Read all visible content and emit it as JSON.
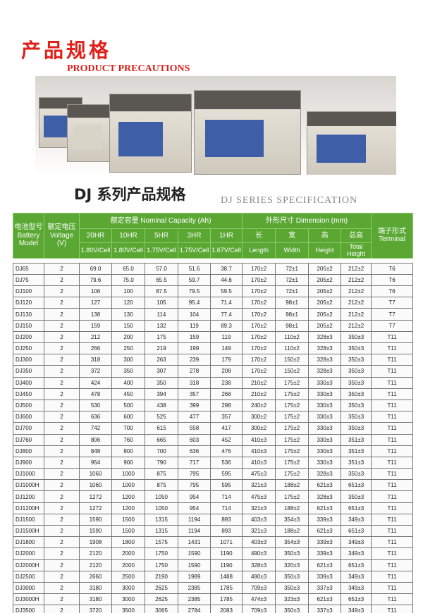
{
  "title_cn": "产品规格",
  "title_en": "PRODUCT PRECAUTIONS",
  "section_cn": "DJ 系列产品规格",
  "section_en": "DJ SERIES SPECIFICATION",
  "colors": {
    "header_green": "#5aa833",
    "title_red": "#e0201a"
  },
  "table": {
    "model_cn": "电池型号",
    "model_en1": "Battery",
    "model_en2": "Model",
    "voltage_cn": "额定电压",
    "voltage_en": "Voltage",
    "voltage_unit": "(V)",
    "capacity_header": "额定容量 Nominal Capacity (Ah)",
    "dimension_header": "外形尺寸 Dimension (mm)",
    "terminal_cn": "端子形式",
    "terminal_en": "Terminal",
    "rates": [
      "20HR",
      "10HR",
      "5HR",
      "3HR",
      "1HR"
    ],
    "cutoffs": [
      "1.80V/Cell",
      "1.80V/Cell",
      "1.75V/Cell",
      "1.75V/Cell",
      "1.67V/Cell"
    ],
    "dims_cn": [
      "长",
      "宽",
      "高",
      "总高"
    ],
    "dims_en": [
      "Length",
      "Width",
      "Height",
      "Total Height"
    ],
    "rows": [
      [
        "DJ65",
        "2",
        "69.0",
        "65.0",
        "57.0",
        "51.6",
        "38.7",
        "170±2",
        "72±1",
        "205±2",
        "212±2",
        "T6"
      ],
      [
        "DJ75",
        "2",
        "79.6",
        "75.0",
        "65.5",
        "59.7",
        "44.6",
        "170±2",
        "72±1",
        "205±2",
        "212±2",
        "T6"
      ],
      [
        "DJ100",
        "2",
        "106",
        "100",
        "87.5",
        "79.5",
        "59.5",
        "170±2",
        "72±1",
        "205±2",
        "212±2",
        "T6"
      ],
      [
        "DJ120",
        "2",
        "127",
        "120",
        "105",
        "95.4",
        "71.4",
        "170±2",
        "98±1",
        "205±2",
        "212±2",
        "T7"
      ],
      [
        "DJ130",
        "2",
        "138",
        "130",
        "114",
        "104",
        "77.4",
        "170±2",
        "98±1",
        "205±2",
        "212±2",
        "T7"
      ],
      [
        "DJ150",
        "2",
        "159",
        "150",
        "132",
        "119",
        "89.3",
        "170±2",
        "98±1",
        "205±2",
        "212±2",
        "T7"
      ],
      [
        "DJ200",
        "2",
        "212",
        "200",
        "175",
        "159",
        "119",
        "170±2",
        "110±2",
        "328±3",
        "350±3",
        "T11"
      ],
      [
        "DJ250",
        "2",
        "266",
        "250",
        "219",
        "199",
        "149",
        "170±2",
        "110±2",
        "328±3",
        "350±3",
        "T11"
      ],
      [
        "DJ300",
        "2",
        "318",
        "300",
        "263",
        "239",
        "179",
        "170±2",
        "150±2",
        "328±3",
        "350±3",
        "T11"
      ],
      [
        "DJ350",
        "2",
        "372",
        "350",
        "307",
        "278",
        "208",
        "170±2",
        "150±2",
        "328±3",
        "350±3",
        "T11"
      ],
      [
        "DJ400",
        "2",
        "424",
        "400",
        "350",
        "318",
        "238",
        "210±2",
        "175±2",
        "330±3",
        "350±3",
        "T11"
      ],
      [
        "DJ450",
        "2",
        "478",
        "450",
        "394",
        "357",
        "268",
        "210±2",
        "175±2",
        "330±3",
        "350±3",
        "T11"
      ],
      [
        "DJ500",
        "2",
        "530",
        "500",
        "438",
        "399",
        "298",
        "240±2",
        "175±2",
        "330±3",
        "350±3",
        "T11"
      ],
      [
        "DJ600",
        "2",
        "636",
        "600",
        "525",
        "477",
        "357",
        "300±2",
        "175±2",
        "330±3",
        "350±3",
        "T11"
      ],
      [
        "DJ700",
        "2",
        "742",
        "700",
        "615",
        "558",
        "417",
        "300±2",
        "175±2",
        "330±3",
        "350±3",
        "T11"
      ],
      [
        "DJ760",
        "2",
        "806",
        "760",
        "665",
        "603",
        "452",
        "410±3",
        "175±2",
        "330±3",
        "351±3",
        "T11"
      ],
      [
        "DJ800",
        "2",
        "848",
        "800",
        "700",
        "636",
        "476",
        "410±3",
        "175±2",
        "330±3",
        "351±3",
        "T11"
      ],
      [
        "DJ900",
        "2",
        "954",
        "900",
        "790",
        "717",
        "536",
        "410±3",
        "175±2",
        "330±3",
        "351±3",
        "T11"
      ],
      [
        "DJ1000",
        "2",
        "1060",
        "1000",
        "875",
        "795",
        "595",
        "475±3",
        "175±2",
        "328±3",
        "350±3",
        "T11"
      ],
      [
        "DJ1000H",
        "2",
        "1060",
        "1000",
        "875",
        "795",
        "595",
        "321±3",
        "188±2",
        "621±3",
        "651±3",
        "T11"
      ],
      [
        "DJ1200",
        "2",
        "1272",
        "1200",
        "1050",
        "954",
        "714",
        "475±3",
        "175±2",
        "328±3",
        "350±3",
        "T11"
      ],
      [
        "DJ1200H",
        "2",
        "1272",
        "1200",
        "1050",
        "954",
        "714",
        "321±3",
        "188±2",
        "621±3",
        "651±3",
        "T11"
      ],
      [
        "DJ1500",
        "2",
        "1590",
        "1500",
        "1315",
        "1194",
        "893",
        "403±3",
        "354±3",
        "339±3",
        "349±3",
        "T11"
      ],
      [
        "DJ1500H",
        "2",
        "1590",
        "1500",
        "1315",
        "1194",
        "893",
        "321±3",
        "188±2",
        "621±3",
        "651±3",
        "T11"
      ],
      [
        "DJ1800",
        "2",
        "1908",
        "1800",
        "1575",
        "1431",
        "1071",
        "403±3",
        "354±3",
        "339±3",
        "349±3",
        "T11"
      ],
      [
        "DJ2000",
        "2",
        "2120",
        "2000",
        "1750",
        "1590",
        "1190",
        "490±3",
        "350±3",
        "339±3",
        "349±3",
        "T11"
      ],
      [
        "DJ2000H",
        "2",
        "2120",
        "2000",
        "1750",
        "1590",
        "1190",
        "328±3",
        "320±3",
        "621±3",
        "651±3",
        "T11"
      ],
      [
        "DJ2500",
        "2",
        "2660",
        "2500",
        "2190",
        "1989",
        "1488",
        "490±3",
        "350±3",
        "339±3",
        "349±3",
        "T11"
      ],
      [
        "DJ3000",
        "2",
        "3180",
        "3000",
        "2625",
        "2385",
        "1785",
        "709±3",
        "350±3",
        "337±3",
        "349±3",
        "T11"
      ],
      [
        "DJ3000H",
        "2",
        "3180",
        "3000",
        "2625",
        "2385",
        "1785",
        "474±3",
        "323±3",
        "621±3",
        "651±3",
        "T11"
      ],
      [
        "DJ3500",
        "2",
        "3720",
        "3500",
        "3065",
        "2784",
        "2083",
        "709±3",
        "350±3",
        "337±3",
        "349±3",
        "T11"
      ]
    ]
  }
}
